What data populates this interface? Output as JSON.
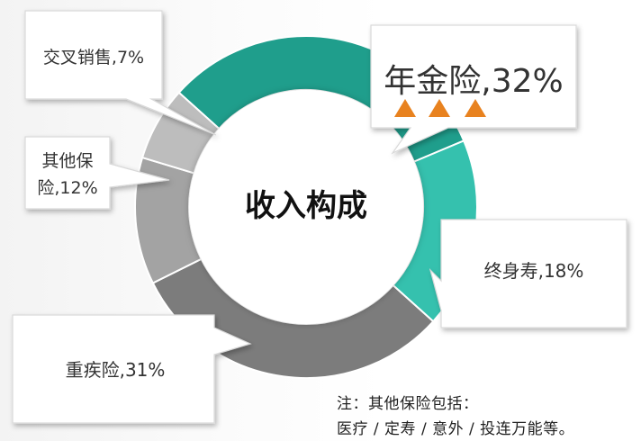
{
  "chart_data": {
    "type": "pie",
    "title": "收入构成",
    "slices": [
      {
        "name": "年金险",
        "label": "年金险,32%",
        "value": 32,
        "color": "#1f9e8c"
      },
      {
        "name": "终身寿",
        "label": "终身寿,18%",
        "value": 18,
        "color": "#35c1ae"
      },
      {
        "name": "重疾险",
        "label": "重疾险,31%",
        "value": 31,
        "color": "#7c7c7c"
      },
      {
        "name": "其他保险",
        "label": "其他保险,12%",
        "value": 12,
        "color": "#a3a3a3"
      },
      {
        "name": "交叉销售",
        "label": "交叉销售,7%",
        "value": 7,
        "color": "#bdbdbd"
      }
    ]
  },
  "callouts": {
    "annuity": "年金险,32%",
    "whole_life": "终身寿,18%",
    "critical_illness": "重疾险,31%",
    "other_line1": "其他保",
    "other_line2": "险,12%",
    "cross_sell": "交叉销售,7%"
  },
  "marker_color": "#e8821f",
  "note": {
    "line1": "注：其他保险包括：",
    "line2": "医疗 / 定寿 / 意外 / 投连万能等。"
  }
}
